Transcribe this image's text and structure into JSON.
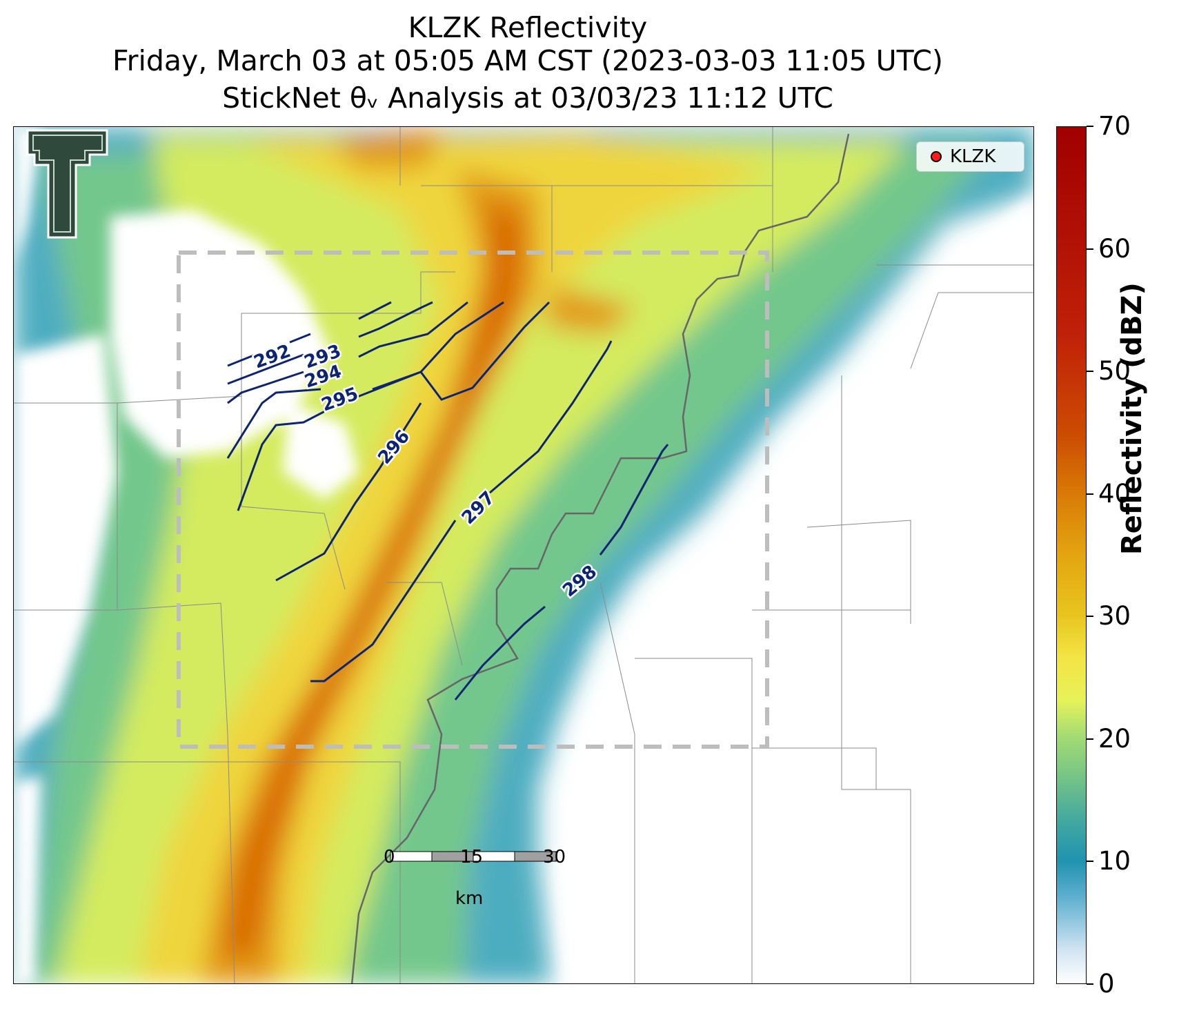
{
  "title": {
    "line1": "KLZK Reflectivity",
    "line2": "Friday, March 03 at 05:05 AM CST (2023-03-03 11:05 UTC)",
    "line3": "StickNet θᵥ Analysis at 03/03/23 11:12 UTC"
  },
  "logo": {
    "name": "texas-tech-double-t-logo",
    "text": "T"
  },
  "legend": {
    "entries": [
      {
        "label": "KLZK",
        "marker_color": "#ff1a1a"
      }
    ]
  },
  "colorbar": {
    "label": "Reflectivity (dBZ)",
    "ticks": [
      "0",
      "10",
      "20",
      "30",
      "40",
      "50",
      "60",
      "70"
    ],
    "range": [
      0,
      70
    ],
    "colors": [
      "#ffffff",
      "#1f93b0",
      "#74c487",
      "#e6f25a",
      "#e3a510",
      "#d97b06",
      "#cc4c02",
      "#a00000"
    ]
  },
  "scalebar": {
    "ticks": [
      "0",
      "15",
      "30"
    ],
    "unit": "km"
  },
  "isentropes": {
    "color": "#0d2472",
    "labels": [
      "292",
      "293",
      "294",
      "295",
      "296",
      "297",
      "298"
    ]
  },
  "analysis_domain_box": {
    "style": "dashed",
    "color": "#bdbdbd"
  }
}
